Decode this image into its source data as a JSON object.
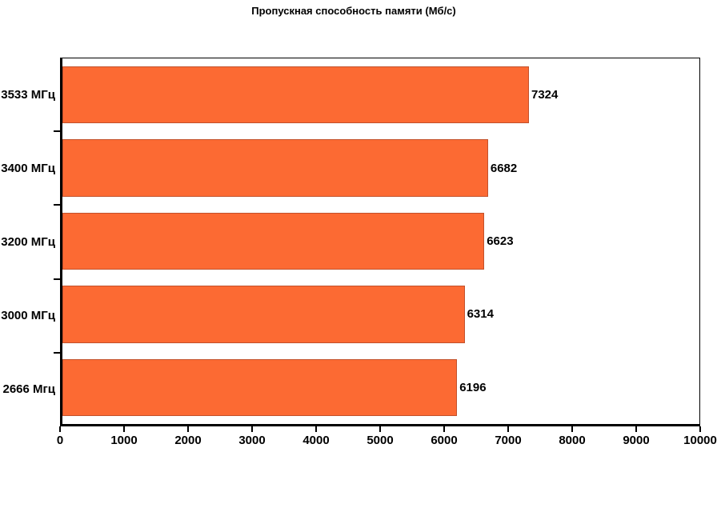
{
  "chart_data": {
    "type": "bar",
    "orientation": "horizontal",
    "title": "Пропускная способность памяти (Мб/с)",
    "categories": [
      "3533 МГц",
      "3400 МГц",
      "3200 МГц",
      "3000 МГц",
      "2666 Мгц"
    ],
    "values": [
      7324,
      6682,
      6623,
      6314,
      6196
    ],
    "bar_value_labels": [
      "7324",
      "6682",
      "6623",
      "6314",
      "6196"
    ],
    "xlim": [
      0,
      10000
    ],
    "x_ticks": [
      0,
      1000,
      2000,
      3000,
      4000,
      5000,
      6000,
      7000,
      8000,
      9000,
      10000
    ],
    "grid": false,
    "legend": false,
    "value_labels_shown": true,
    "colors": {
      "bar_fill": "#fc6a33",
      "bar_border": "#c2512b",
      "axis": "#000000",
      "text": "#000000",
      "background": "#ffffff"
    }
  }
}
